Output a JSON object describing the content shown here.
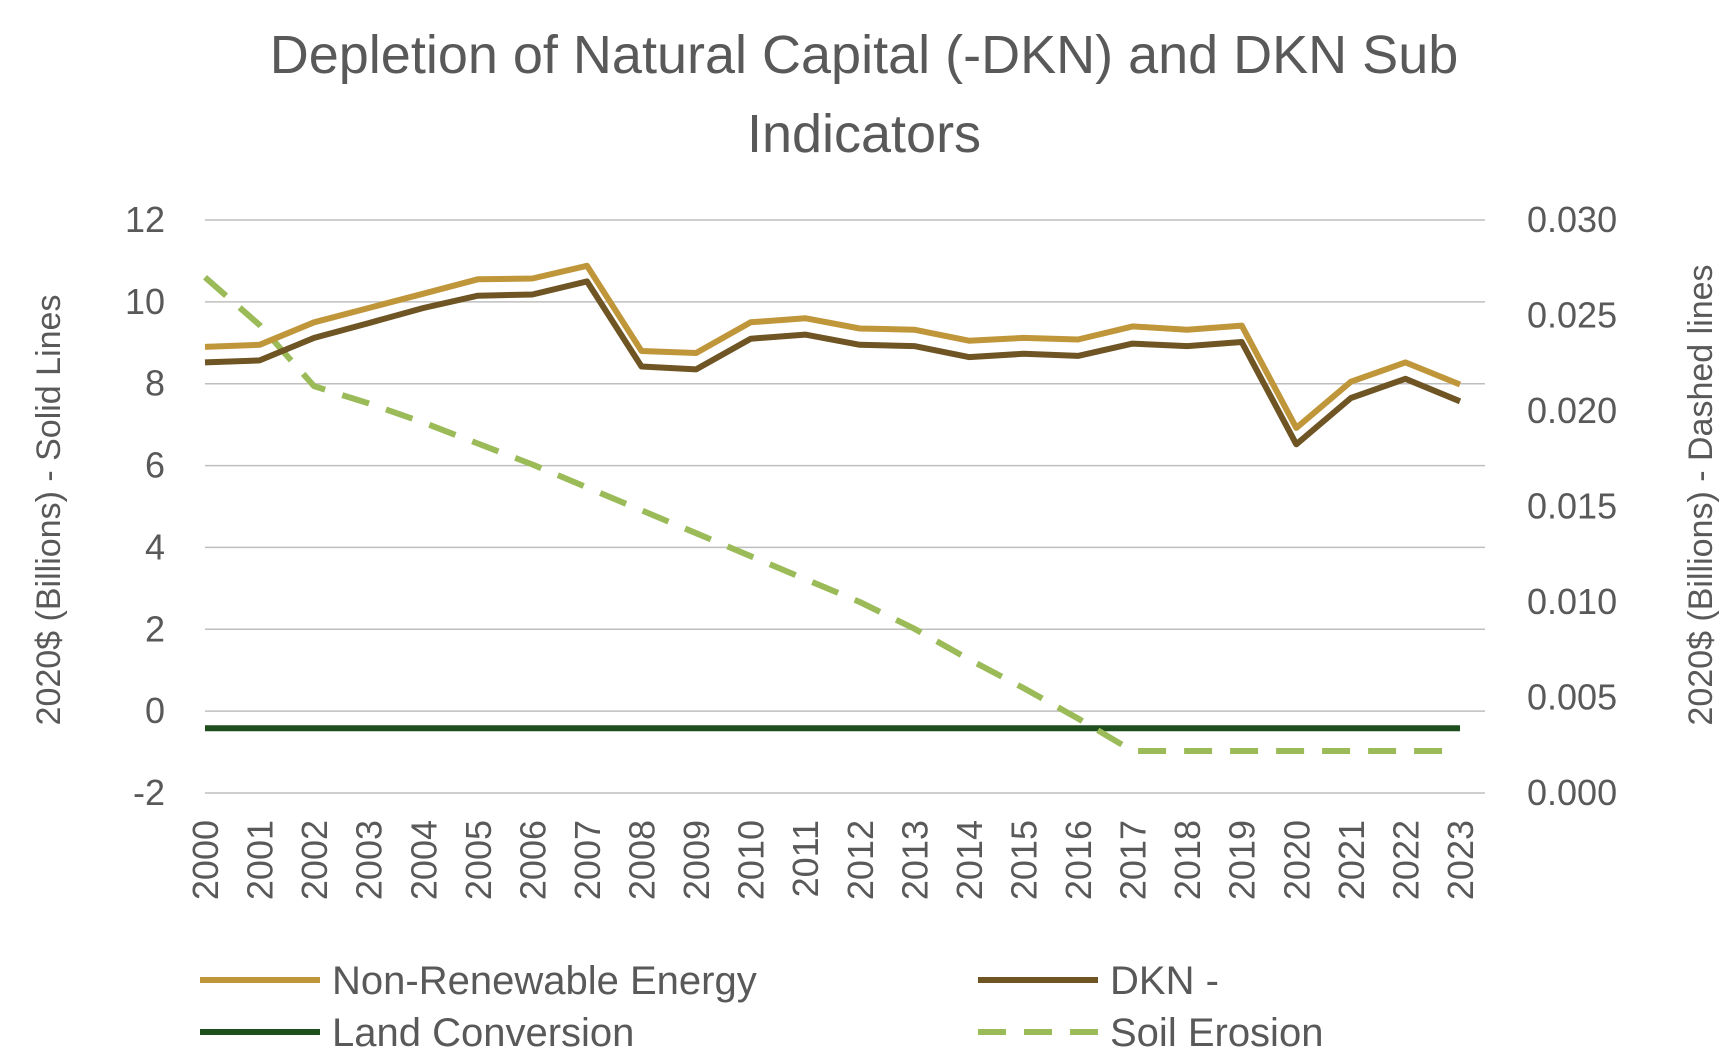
{
  "colors": {
    "non_renewable": "#C0963B",
    "dkn": "#6F5424",
    "land_conversion": "#1E4D1E",
    "soil_erosion": "#9BBB59",
    "grid": "#BFBFBF",
    "text": "#595959"
  },
  "chart_data": {
    "type": "line",
    "title_lines": [
      "Depletion of Natural Capital (-DKN) and DKN Sub",
      "Indicators"
    ],
    "ylabel_left": "2020$ (Billions) - Solid Lines",
    "ylabel_right": "2020$ (Billions) - Dashed lines",
    "ylim_left": [
      -2,
      12
    ],
    "ylim_right": [
      0,
      0.03
    ],
    "yticks_left": [
      "-2",
      "0",
      "2",
      "4",
      "6",
      "8",
      "10",
      "12"
    ],
    "yticks_right": [
      "0.000",
      "0.005",
      "0.010",
      "0.015",
      "0.020",
      "0.025",
      "0.030"
    ],
    "grid": true,
    "legend_position": "bottom",
    "x": [
      "2000",
      "2001",
      "2002",
      "2003",
      "2004",
      "2005",
      "2006",
      "2007",
      "2008",
      "2009",
      "2010",
      "2011",
      "2012",
      "2013",
      "2014",
      "2015",
      "2016",
      "2017",
      "2018",
      "2019",
      "2020",
      "2021",
      "2022",
      "2023"
    ],
    "series": [
      {
        "name": "Non-Renewable Energy",
        "axis": "left",
        "style": "solid",
        "values": [
          8.9,
          8.95,
          9.5,
          9.85,
          10.2,
          10.55,
          10.57,
          10.88,
          8.8,
          8.75,
          9.5,
          9.6,
          9.35,
          9.32,
          9.05,
          9.12,
          9.08,
          9.4,
          9.32,
          9.42,
          6.92,
          8.05,
          8.52,
          7.98
        ]
      },
      {
        "name": "DKN -",
        "axis": "left",
        "style": "solid",
        "values": [
          8.52,
          8.57,
          9.12,
          9.48,
          9.85,
          10.15,
          10.18,
          10.5,
          8.42,
          8.35,
          9.1,
          9.2,
          8.95,
          8.92,
          8.65,
          8.73,
          8.68,
          8.98,
          8.92,
          9.02,
          6.52,
          7.65,
          8.12,
          7.57
        ]
      },
      {
        "name": "Land Conversion",
        "axis": "left",
        "style": "solid",
        "values": [
          -0.42,
          -0.42,
          -0.42,
          -0.42,
          -0.42,
          -0.42,
          -0.42,
          -0.42,
          -0.42,
          -0.42,
          -0.42,
          -0.42,
          -0.42,
          -0.42,
          -0.42,
          -0.42,
          -0.42,
          -0.42,
          -0.42,
          -0.42,
          -0.42,
          -0.42,
          -0.42,
          -0.42
        ]
      },
      {
        "name": "Soil Erosion",
        "axis": "right",
        "style": "dashed",
        "values": [
          0.027,
          0.0245,
          0.0213,
          0.0204,
          0.0194,
          0.0183,
          0.0172,
          0.016,
          0.0148,
          0.0136,
          0.0124,
          0.0112,
          0.01,
          0.0086,
          0.007,
          0.0055,
          0.0039,
          0.0022,
          0.0022,
          0.0022,
          0.0022,
          0.0022,
          0.0022,
          0.0022
        ]
      }
    ]
  }
}
